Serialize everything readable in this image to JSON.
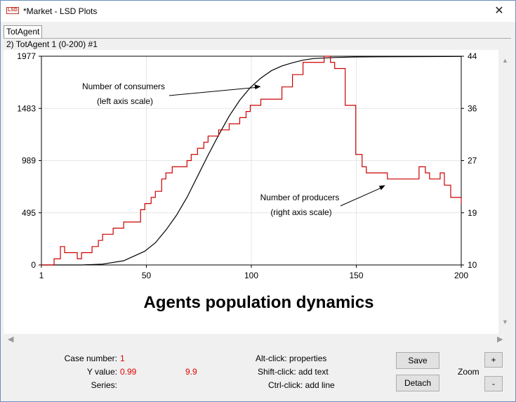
{
  "window": {
    "app_icon_text": "LSD",
    "title": "*Market - LSD Plots",
    "close_glyph": "✕"
  },
  "tabs": [
    {
      "label": "TotAgent"
    }
  ],
  "plot_header": "2) TotAgent 1 (0-200) #1",
  "chart_data": {
    "type": "line",
    "title": "Agents population dynamics",
    "x_ticks": [
      "1",
      "50",
      "100",
      "150",
      "200"
    ],
    "xlim": [
      1,
      200
    ],
    "y_left_ticks": [
      "0",
      "495",
      "989",
      "1483",
      "1977"
    ],
    "ylim_left": [
      0,
      1977
    ],
    "y_right_ticks": [
      "10",
      "19",
      "27",
      "36",
      "44"
    ],
    "ylim_right": [
      10,
      44
    ],
    "grid": true,
    "series": [
      {
        "name": "Number of consumers",
        "axis": "left",
        "color": "#000000",
        "x": [
          1,
          20,
          30,
          40,
          50,
          55,
          60,
          65,
          70,
          75,
          80,
          85,
          90,
          95,
          100,
          105,
          110,
          115,
          120,
          125,
          130,
          140,
          150,
          160,
          200
        ],
        "values": [
          0,
          0,
          8,
          40,
          130,
          210,
          330,
          470,
          640,
          840,
          1040,
          1230,
          1410,
          1560,
          1680,
          1770,
          1840,
          1885,
          1915,
          1940,
          1955,
          1965,
          1970,
          1972,
          1975
        ]
      },
      {
        "name": "Number of producers",
        "axis": "right",
        "color": "#cc0000",
        "x": [
          1,
          5,
          7,
          10,
          12,
          15,
          18,
          20,
          22,
          25,
          28,
          30,
          33,
          35,
          38,
          40,
          45,
          48,
          50,
          53,
          55,
          58,
          60,
          63,
          65,
          70,
          72,
          75,
          78,
          80,
          85,
          88,
          90,
          95,
          98,
          100,
          105,
          110,
          115,
          120,
          125,
          130,
          135,
          136,
          138,
          140,
          145,
          150,
          153,
          155,
          160,
          165,
          170,
          175,
          180,
          183,
          185,
          190,
          192,
          195,
          200
        ],
        "values": [
          10,
          10,
          11,
          13,
          12,
          12,
          11,
          12,
          12,
          13,
          14,
          15,
          15,
          16,
          16,
          17,
          17,
          19,
          20,
          21,
          22,
          24,
          25,
          26,
          26,
          27,
          28,
          29,
          30,
          31,
          32,
          32,
          33,
          34,
          35,
          36,
          37,
          37,
          39,
          41,
          43,
          43,
          44,
          44,
          43,
          42,
          36,
          28,
          26,
          25,
          25,
          24,
          24,
          24,
          26,
          25,
          24,
          25,
          23,
          21,
          20
        ]
      }
    ],
    "annotations": [
      {
        "text": [
          "Number of consumers",
          "(left axis scale)"
        ],
        "arrow_to": {
          "x": 105,
          "y_left": 1690
        }
      },
      {
        "text": [
          "Number of producers",
          "(right axis scale)"
        ],
        "arrow_to": {
          "x": 164,
          "y_right": 23
        }
      }
    ]
  },
  "status": {
    "case_label": "Case number:",
    "case_value": "1",
    "yvalue_label": "Y value:",
    "yvalue_1": "0.99",
    "yvalue_2": "9.9",
    "series_label": "Series:",
    "hint_alt": "Alt-click: properties",
    "hint_shift": "Shift-click: add text",
    "hint_ctrl": "Ctrl-click: add line"
  },
  "buttons": {
    "save": "Save",
    "detach": "Detach",
    "zoom_label": "Zoom",
    "zoom_in": "+",
    "zoom_out": "-"
  },
  "scroll": {
    "up": "▲",
    "down": "▼",
    "left": "◀",
    "right": "▶"
  }
}
